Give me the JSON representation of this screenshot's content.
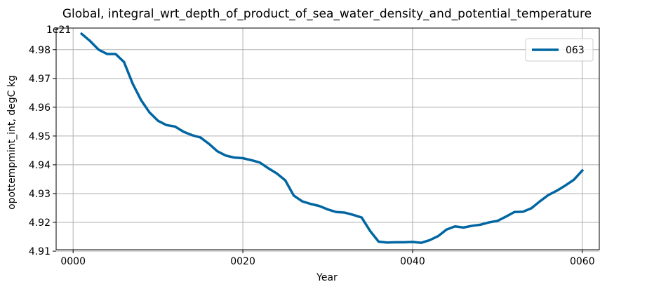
{
  "chart_data": {
    "type": "line",
    "title": "Global, integral_wrt_depth_of_product_of_sea_water_density_and_potential_temperature",
    "xlabel": "Year",
    "ylabel": "opottempmint_int, degC kg",
    "y_offset_label": "1e21",
    "xlim": [
      -2,
      62
    ],
    "ylim": [
      4.9105,
      4.9875
    ],
    "xticks": [
      0,
      20,
      40,
      60
    ],
    "xtick_labels": [
      "0000",
      "0020",
      "0040",
      "0060"
    ],
    "yticks": [
      4.91,
      4.92,
      4.93,
      4.94,
      4.95,
      4.96,
      4.97,
      4.98
    ],
    "ytick_labels": [
      "4.91",
      "4.92",
      "4.93",
      "4.94",
      "4.95",
      "4.96",
      "4.97",
      "4.98"
    ],
    "grid": true,
    "legend_position": "top-right",
    "series": [
      {
        "name": "063",
        "color": "#0066a2",
        "x": [
          1,
          2,
          3,
          4,
          5,
          6,
          7,
          8,
          9,
          10,
          11,
          12,
          13,
          14,
          15,
          16,
          17,
          18,
          19,
          20,
          21,
          22,
          23,
          24,
          25,
          26,
          27,
          28,
          29,
          30,
          31,
          32,
          33,
          34,
          35,
          36,
          37,
          38,
          39,
          40,
          41,
          42,
          43,
          44,
          45,
          46,
          47,
          48,
          49,
          50,
          51,
          52,
          53,
          54,
          55,
          56,
          57,
          58,
          59,
          60
        ],
        "values": [
          4.9855,
          4.983,
          4.98,
          4.9785,
          4.9785,
          4.9757,
          4.9683,
          4.9625,
          4.9582,
          4.9553,
          4.9538,
          4.9533,
          4.9515,
          4.9503,
          4.9495,
          4.9473,
          4.9447,
          4.9432,
          4.9425,
          4.9423,
          4.9416,
          4.9408,
          4.9388,
          4.937,
          4.9346,
          4.9293,
          4.9273,
          4.9264,
          4.9257,
          4.9245,
          4.9236,
          4.9234,
          4.9226,
          4.9217,
          4.917,
          4.9133,
          4.913,
          4.9131,
          4.9131,
          4.9132,
          4.9129,
          4.9138,
          4.9152,
          4.9175,
          4.9186,
          4.9182,
          4.9188,
          4.9192,
          4.92,
          4.9205,
          4.922,
          4.9236,
          4.9237,
          4.9249,
          4.9273,
          4.9295,
          4.931,
          4.9328,
          4.9348,
          4.938
        ]
      }
    ]
  }
}
